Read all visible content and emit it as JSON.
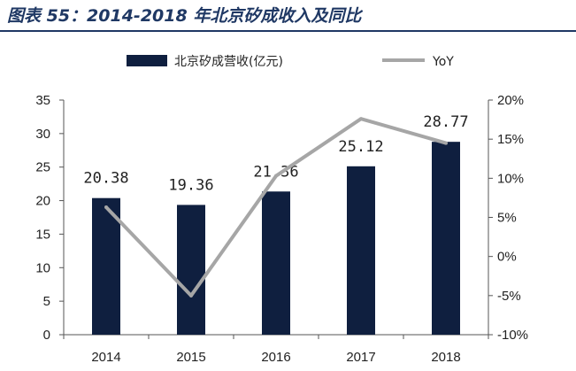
{
  "title": "图表 55：2014-2018 年北京矽成收入及同比",
  "chart_data": {
    "type": "bar",
    "categories": [
      "2014",
      "2015",
      "2016",
      "2017",
      "2018"
    ],
    "series": [
      {
        "name": "北京矽成营收(亿元)",
        "type": "bar",
        "axis": "left",
        "color": "#0f1f3f",
        "values": [
          20.38,
          19.36,
          21.36,
          25.12,
          28.77
        ],
        "labels": [
          "20.38",
          "19.36",
          "21.36",
          "25.12",
          "28.77"
        ]
      },
      {
        "name": "YoY",
        "type": "line",
        "axis": "right",
        "color": "#a6a6a6",
        "values": [
          6.3,
          -5.0,
          10.3,
          17.6,
          14.5
        ]
      }
    ],
    "y_left": {
      "min": 0,
      "max": 35,
      "step": 5,
      "ticks": [
        "0",
        "5",
        "10",
        "15",
        "20",
        "25",
        "30",
        "35"
      ]
    },
    "y_right": {
      "min": -10,
      "max": 20,
      "step": 5,
      "ticks": [
        "-10%",
        "-5%",
        "0%",
        "5%",
        "10%",
        "15%",
        "20%"
      ]
    },
    "legend_position": "top-center",
    "grid": false
  }
}
